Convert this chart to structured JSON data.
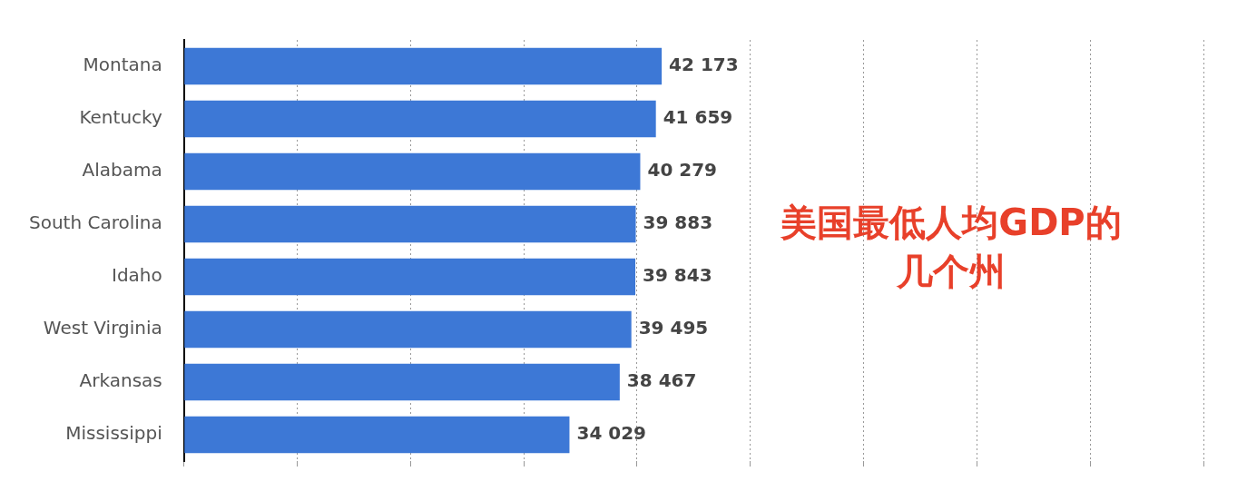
{
  "chart_data": {
    "type": "bar",
    "orientation": "horizontal",
    "categories": [
      "Montana",
      "Kentucky",
      "Alabama",
      "South Carolina",
      "Idaho",
      "West Virginia",
      "Arkansas",
      "Mississippi"
    ],
    "values": [
      42173,
      41659,
      40279,
      39883,
      39843,
      39495,
      38467,
      34029
    ],
    "value_labels": [
      "42 173",
      "41 659",
      "40 279",
      "39 883",
      "39 843",
      "39 495",
      "38 467",
      "34 029"
    ],
    "color": "#3d78d6",
    "xticks": [
      {
        "value": 0,
        "label": null
      },
      {
        "value": 10000,
        "label": null
      },
      {
        "value": 20000,
        "label": null
      },
      {
        "value": 30000,
        "label": null
      },
      {
        "value": 40000,
        "label": null
      },
      {
        "value": 50000,
        "label": null
      },
      {
        "value": 60000,
        "label": null
      },
      {
        "value": 70000,
        "label": null
      },
      {
        "value": 80000,
        "label": null
      },
      {
        "value": 90000,
        "label": null
      }
    ],
    "tick_labels": "y",
    "grid": "x",
    "line_style": "dotted",
    "annotations": [
      "美国最低人均GDP的几个州"
    ]
  }
}
